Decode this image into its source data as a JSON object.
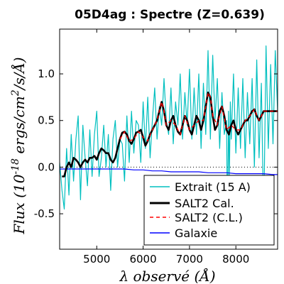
{
  "chart_data": {
    "type": "line",
    "title": "05D4ag : Spectre (Z=0.639)",
    "xlabel": "λ observé (Å)",
    "ylabel": "Flux (10^-18 ergs/cm^2/s/Å)",
    "xlim": [
      4200,
      8900
    ],
    "ylim": [
      -0.88,
      1.48
    ],
    "xticks": [
      5000,
      6000,
      7000,
      8000
    ],
    "xtick_labels": [
      "5000",
      "6000",
      "7000",
      "8000"
    ],
    "yticks": [
      -0.5,
      0.0,
      0.5,
      1.0
    ],
    "ytick_labels": [
      "-0.5",
      "0.0",
      "0.5",
      "1.0"
    ],
    "zero_line": "dotted",
    "grid": false,
    "legend_position": "bottom-right",
    "colors": {
      "extrait": "#00bfbf",
      "salt2_cal": "#000000",
      "salt2_cl": "#ff0000",
      "galaxie": "#0000ff"
    },
    "series": [
      {
        "name": "Extrait (15 A)",
        "color": "#00bfbf",
        "x": [
          4200,
          4250,
          4300,
          4350,
          4400,
          4450,
          4500,
          4550,
          4600,
          4650,
          4700,
          4750,
          4800,
          4850,
          4900,
          4950,
          5000,
          5050,
          5100,
          5150,
          5200,
          5250,
          5300,
          5350,
          5400,
          5450,
          5500,
          5550,
          5600,
          5650,
          5700,
          5750,
          5800,
          5850,
          5900,
          5950,
          6000,
          6050,
          6100,
          6150,
          6200,
          6250,
          6300,
          6350,
          6400,
          6450,
          6500,
          6550,
          6600,
          6650,
          6700,
          6750,
          6800,
          6850,
          6900,
          6950,
          7000,
          7050,
          7100,
          7150,
          7200,
          7250,
          7300,
          7350,
          7400,
          7450,
          7500,
          7550,
          7600,
          7650,
          7700,
          7750,
          7800,
          7820,
          7840,
          7860,
          7880,
          7900,
          7950,
          8000,
          8050,
          8100,
          8150,
          8200,
          8250,
          8300,
          8350,
          8400,
          8450,
          8500,
          8550,
          8600,
          8650,
          8700,
          8750,
          8800,
          8850,
          8900
        ],
        "y": [
          0.05,
          -0.25,
          -0.45,
          0.2,
          -0.3,
          0.35,
          -0.15,
          0.3,
          0.55,
          -0.35,
          0.45,
          0.1,
          -0.2,
          0.4,
          -0.1,
          0.35,
          0.6,
          -0.1,
          0.1,
          0.45,
          0.0,
          0.35,
          -0.25,
          0.3,
          0.5,
          0.0,
          0.3,
          0.25,
          -0.15,
          0.55,
          0.05,
          0.6,
          0.15,
          0.5,
          0.45,
          0.05,
          0.7,
          0.2,
          0.75,
          0.1,
          0.5,
          0.85,
          0.3,
          0.65,
          0.45,
          0.95,
          0.5,
          0.35,
          0.85,
          0.25,
          0.7,
          0.45,
          1.0,
          0.3,
          0.8,
          0.45,
          1.05,
          0.3,
          0.85,
          0.35,
          1.0,
          0.2,
          0.9,
          0.35,
          1.25,
          0.3,
          1.2,
          0.5,
          0.95,
          0.2,
          0.8,
          0.35,
          0.5,
          -0.75,
          0.6,
          -0.1,
          0.7,
          0.3,
          1.0,
          0.15,
          0.85,
          0.2,
          0.95,
          0.1,
          0.8,
          0.25,
          0.95,
          0.0,
          1.15,
          0.1,
          0.9,
          -0.6,
          1.3,
          0.2,
          1.1,
          0.25,
          1.25,
          0.6
        ]
      },
      {
        "name": "SALT2 Cal.",
        "color": "#000000",
        "x": [
          4250,
          4300,
          4350,
          4400,
          4450,
          4500,
          4550,
          4600,
          4650,
          4700,
          4750,
          4800,
          4850,
          4900,
          4950,
          5000,
          5050,
          5100,
          5150,
          5200,
          5250,
          5300,
          5350,
          5400,
          5450,
          5500,
          5550,
          5600,
          5650,
          5700,
          5750,
          5800,
          5850,
          5900,
          5950,
          6000,
          6050,
          6100,
          6150,
          6200,
          6250,
          6300,
          6350,
          6400,
          6450,
          6500,
          6550,
          6600,
          6650,
          6700,
          6750,
          6800,
          6850,
          6900,
          6950,
          7000,
          7050,
          7100,
          7150,
          7200,
          7250,
          7300,
          7350,
          7400,
          7450,
          7500,
          7550,
          7600,
          7650,
          7700,
          7750,
          7800,
          7850,
          7900,
          7950,
          8000,
          8050,
          8100,
          8150,
          8200,
          8250,
          8300,
          8350,
          8400,
          8450,
          8500,
          8550,
          8600,
          8650,
          8700,
          8750,
          8800,
          8850,
          8900
        ],
        "y": [
          -0.1,
          -0.1,
          0.0,
          0.05,
          0.0,
          0.1,
          0.08,
          0.05,
          0.0,
          0.05,
          0.08,
          0.05,
          0.1,
          0.1,
          0.12,
          0.08,
          0.15,
          0.2,
          0.18,
          0.15,
          0.15,
          0.08,
          0.05,
          0.1,
          0.2,
          0.3,
          0.37,
          0.38,
          0.35,
          0.28,
          0.25,
          0.3,
          0.37,
          0.38,
          0.4,
          0.32,
          0.23,
          0.28,
          0.35,
          0.4,
          0.45,
          0.5,
          0.6,
          0.7,
          0.6,
          0.45,
          0.4,
          0.5,
          0.55,
          0.45,
          0.38,
          0.35,
          0.45,
          0.55,
          0.5,
          0.4,
          0.35,
          0.45,
          0.55,
          0.5,
          0.4,
          0.5,
          0.65,
          0.8,
          0.75,
          0.55,
          0.4,
          0.45,
          0.6,
          0.65,
          0.55,
          0.4,
          0.35,
          0.45,
          0.5,
          0.4,
          0.35,
          0.4,
          0.45,
          0.5,
          0.5,
          0.55,
          0.6,
          0.62,
          0.55,
          0.5,
          0.55,
          0.6,
          0.6,
          0.6,
          0.6,
          0.6,
          0.6,
          0.6
        ]
      },
      {
        "name": "SALT2 (C.L.)",
        "color": "#ff0000",
        "x": [
          5500,
          5600,
          5700,
          5800,
          5900,
          6000,
          6100,
          6200,
          6300,
          6400,
          6450,
          6500,
          6600,
          6700,
          6800,
          6900,
          7000,
          7100,
          7200,
          7300,
          7400,
          7450,
          7500,
          7600,
          7700,
          7800,
          7900,
          8000,
          8100,
          8200,
          8300,
          8400,
          8500,
          8600,
          8700,
          8800,
          8900
        ],
        "y": [
          0.3,
          0.38,
          0.28,
          0.3,
          0.38,
          0.32,
          0.28,
          0.4,
          0.5,
          0.7,
          0.6,
          0.45,
          0.5,
          0.45,
          0.35,
          0.55,
          0.4,
          0.45,
          0.5,
          0.5,
          0.8,
          0.75,
          0.55,
          0.45,
          0.65,
          0.4,
          0.45,
          0.4,
          0.4,
          0.5,
          0.55,
          0.62,
          0.5,
          0.6,
          0.6,
          0.6,
          0.6
        ]
      },
      {
        "name": "Galaxie",
        "color": "#0000ff",
        "x": [
          4200,
          4500,
          4800,
          5000,
          5200,
          5400,
          5600,
          5800,
          6000,
          6200,
          6400,
          6600,
          6800,
          7000,
          7200,
          7400,
          7600,
          7800,
          8000,
          8200,
          8400,
          8600,
          8800,
          8900
        ],
        "y": [
          -0.02,
          -0.02,
          -0.02,
          -0.02,
          -0.02,
          -0.02,
          -0.02,
          -0.03,
          -0.03,
          -0.04,
          -0.04,
          -0.05,
          -0.05,
          -0.05,
          -0.05,
          -0.06,
          -0.06,
          -0.06,
          -0.07,
          -0.07,
          -0.07,
          -0.07,
          -0.08,
          -0.08
        ]
      }
    ]
  }
}
